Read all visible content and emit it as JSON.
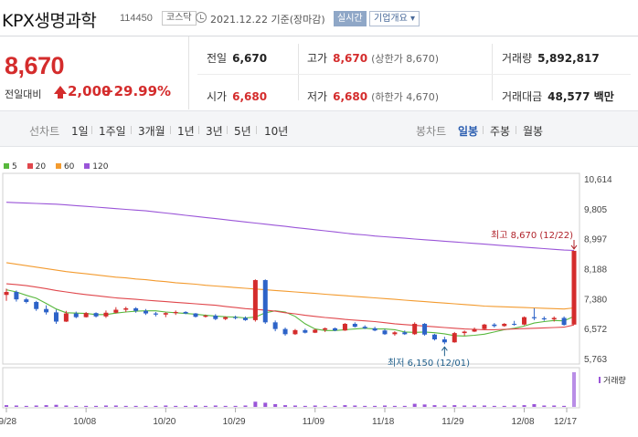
{
  "header": {
    "name": "KPX생명과학",
    "code": "114450",
    "market": "코스닥",
    "date": "2021.12.22 기준(장마감)",
    "realtime_button": "실시간",
    "company_info_button": "기업개요 ▾"
  },
  "summary": {
    "price": "8,670",
    "change_label": "전일대비",
    "change": "2,000",
    "change_pct": "+29.99%",
    "prev_close_label": "전일",
    "prev_close": "6,670",
    "high_label": "고가",
    "high": "8,670",
    "high_note": "(상한가 8,670)",
    "volume_label": "거래량",
    "volume": "5,892,817",
    "open_label": "시가",
    "open": "6,680",
    "low_label": "저가",
    "low": "6,680",
    "low_note": "(하한가 4,670)",
    "amount_label": "거래대금",
    "amount": "48,577 백만"
  },
  "toolbar": {
    "line_chart": "선차트",
    "ranges": [
      "1일",
      "1주일",
      "3개월",
      "1년",
      "3년",
      "5년",
      "10년"
    ],
    "candle_chart": "봉차트",
    "periods": [
      "일봉",
      "주봉",
      "월봉"
    ],
    "active_period": "일봉"
  },
  "legend": [
    {
      "label": "5",
      "color": "#58b83d"
    },
    {
      "label": "20",
      "color": "#e0474c"
    },
    {
      "label": "60",
      "color": "#f39b2f"
    },
    {
      "label": "120",
      "color": "#9a55d8"
    }
  ],
  "volume_label": "거래량",
  "annotations": {
    "high": "최고 8,670 (12/22)",
    "low": "최저 6,150 (12/01)"
  },
  "colors": {
    "up": "#d42c2c",
    "down": "#2d63c8",
    "accent_blue": "#2a5db0"
  },
  "chart_data": {
    "type": "candlestick",
    "y_ticks": [
      10614,
      9805,
      8997,
      8188,
      7380,
      6572,
      5763
    ],
    "x_ticks": [
      "09/28",
      "10/08",
      "10/20",
      "10/29",
      "11/09",
      "11/18",
      "11/29",
      "12/08",
      "12/17"
    ],
    "candles": [
      [
        7480,
        7650,
        7320,
        7560
      ],
      [
        7560,
        7600,
        7300,
        7360
      ],
      [
        7360,
        7400,
        7250,
        7290
      ],
      [
        7290,
        7320,
        7050,
        7100
      ],
      [
        7100,
        7200,
        6950,
        7010
      ],
      [
        7010,
        7080,
        6700,
        6760
      ],
      [
        6760,
        7050,
        6750,
        6980
      ],
      [
        6980,
        7030,
        6850,
        6880
      ],
      [
        6880,
        7020,
        6870,
        6990
      ],
      [
        6990,
        7010,
        6870,
        6900
      ],
      [
        6900,
        7060,
        6860,
        7000
      ],
      [
        7000,
        7150,
        6980,
        7080
      ],
      [
        7080,
        7160,
        7020,
        7120
      ],
      [
        7120,
        7150,
        7000,
        7050
      ],
      [
        7050,
        7100,
        6940,
        6980
      ],
      [
        6980,
        7020,
        6900,
        6950
      ],
      [
        6950,
        7010,
        6880,
        6990
      ],
      [
        6990,
        7060,
        6940,
        7020
      ],
      [
        7020,
        7040,
        6960,
        6980
      ],
      [
        6980,
        6990,
        6870,
        6890
      ],
      [
        6890,
        6950,
        6870,
        6920
      ],
      [
        6920,
        6960,
        6800,
        6830
      ],
      [
        6830,
        6900,
        6800,
        6880
      ],
      [
        6880,
        6920,
        6820,
        6860
      ],
      [
        6860,
        6900,
        6780,
        6800
      ],
      [
        6800,
        7900,
        6760,
        7880
      ],
      [
        7880,
        7900,
        6700,
        6740
      ],
      [
        6740,
        6790,
        6500,
        6560
      ],
      [
        6560,
        6600,
        6380,
        6420
      ],
      [
        6420,
        6560,
        6400,
        6530
      ],
      [
        6530,
        6570,
        6440,
        6460
      ],
      [
        6460,
        6560,
        6450,
        6540
      ],
      [
        6540,
        6600,
        6480,
        6580
      ],
      [
        6580,
        6600,
        6500,
        6520
      ],
      [
        6520,
        6720,
        6510,
        6700
      ],
      [
        6700,
        6740,
        6600,
        6620
      ],
      [
        6620,
        6660,
        6560,
        6580
      ],
      [
        6580,
        6620,
        6500,
        6520
      ],
      [
        6520,
        6560,
        6400,
        6420
      ],
      [
        6420,
        6500,
        6380,
        6470
      ],
      [
        6470,
        6520,
        6400,
        6420
      ],
      [
        6420,
        6740,
        6400,
        6700
      ],
      [
        6700,
        6720,
        6380,
        6410
      ],
      [
        6410,
        6430,
        6250,
        6280
      ],
      [
        6280,
        6350,
        6150,
        6200
      ],
      [
        6200,
        6480,
        6190,
        6450
      ],
      [
        6450,
        6520,
        6380,
        6490
      ],
      [
        6490,
        6600,
        6480,
        6560
      ],
      [
        6560,
        6700,
        6540,
        6680
      ],
      [
        6680,
        6720,
        6600,
        6640
      ],
      [
        6640,
        6720,
        6620,
        6700
      ],
      [
        6700,
        6780,
        6650,
        6680
      ],
      [
        6680,
        6900,
        6660,
        6880
      ],
      [
        6880,
        7120,
        6800,
        6850
      ],
      [
        6850,
        6900,
        6780,
        6820
      ],
      [
        6820,
        6900,
        6760,
        6860
      ],
      [
        6860,
        6900,
        6650,
        6670
      ],
      [
        6680,
        8670,
        6680,
        8670
      ]
    ],
    "volume": [
      0.05,
      0.04,
      0.03,
      0.04,
      0.05,
      0.06,
      0.04,
      0.03,
      0.03,
      0.03,
      0.04,
      0.04,
      0.03,
      0.03,
      0.03,
      0.03,
      0.04,
      0.03,
      0.03,
      0.04,
      0.03,
      0.04,
      0.03,
      0.03,
      0.04,
      0.15,
      0.12,
      0.08,
      0.05,
      0.04,
      0.03,
      0.04,
      0.03,
      0.03,
      0.05,
      0.04,
      0.03,
      0.03,
      0.04,
      0.03,
      0.03,
      0.09,
      0.07,
      0.05,
      0.04,
      0.05,
      0.04,
      0.04,
      0.04,
      0.03,
      0.03,
      0.04,
      0.05,
      0.08,
      0.04,
      0.04,
      0.03,
      1.0
    ],
    "ma": {
      "5": [
        7620,
        7560,
        7470,
        7390,
        7250,
        7100,
        7000,
        6990,
        6980,
        6950,
        6950,
        6990,
        7020,
        7040,
        7050,
        7050,
        7020,
        7000,
        6980,
        6960,
        6930,
        6910,
        6890,
        6880,
        6860,
        6880,
        7000,
        7050,
        7020,
        6900,
        6700,
        6560,
        6520,
        6520,
        6540,
        6560,
        6580,
        6560,
        6560,
        6540,
        6480,
        6470,
        6480,
        6460,
        6430,
        6380,
        6370,
        6390,
        6420,
        6480,
        6540,
        6580,
        6640,
        6720,
        6760,
        6790,
        6780,
        6900
      ],
      "20": [
        7780,
        7760,
        7730,
        7690,
        7650,
        7600,
        7560,
        7520,
        7490,
        7460,
        7430,
        7400,
        7380,
        7360,
        7340,
        7320,
        7300,
        7280,
        7260,
        7240,
        7220,
        7200,
        7170,
        7140,
        7110,
        7090,
        7070,
        7040,
        7000,
        6970,
        6930,
        6900,
        6870,
        6850,
        6820,
        6800,
        6780,
        6760,
        6730,
        6700,
        6680,
        6660,
        6640,
        6620,
        6600,
        6580,
        6560,
        6550,
        6540,
        6540,
        6550,
        6560,
        6570,
        6580,
        6590,
        6600,
        6610,
        6670
      ],
      "60": [
        8350,
        8310,
        8270,
        8230,
        8190,
        8150,
        8110,
        8080,
        8050,
        8020,
        7990,
        7960,
        7940,
        7910,
        7890,
        7860,
        7840,
        7810,
        7790,
        7770,
        7740,
        7720,
        7700,
        7680,
        7660,
        7640,
        7620,
        7600,
        7580,
        7560,
        7540,
        7520,
        7500,
        7480,
        7460,
        7440,
        7420,
        7400,
        7380,
        7360,
        7340,
        7320,
        7300,
        7280,
        7260,
        7240,
        7220,
        7200,
        7180,
        7170,
        7160,
        7150,
        7140,
        7130,
        7120,
        7110,
        7100,
        7130
      ],
      "120": [
        9980,
        9970,
        9960,
        9950,
        9940,
        9930,
        9910,
        9890,
        9870,
        9850,
        9830,
        9810,
        9790,
        9770,
        9750,
        9720,
        9690,
        9660,
        9630,
        9600,
        9570,
        9540,
        9510,
        9480,
        9450,
        9420,
        9390,
        9360,
        9330,
        9300,
        9270,
        9240,
        9210,
        9180,
        9150,
        9120,
        9100,
        9070,
        9050,
        9030,
        9010,
        8990,
        8970,
        8950,
        8930,
        8910,
        8890,
        8870,
        8850,
        8830,
        8810,
        8790,
        8770,
        8750,
        8730,
        8710,
        8690,
        8680
      ]
    }
  }
}
